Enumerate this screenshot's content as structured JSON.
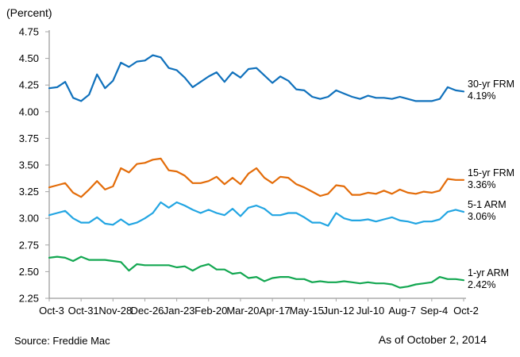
{
  "header": {
    "title": "(Percent)"
  },
  "footer": {
    "source": "Source: Freddie Mac",
    "as_of": "As of October 2, 2014"
  },
  "chart_data": {
    "type": "line",
    "title": "(Percent)",
    "ylabel": "Percent",
    "ylim": [
      2.25,
      4.75
    ],
    "y_ticks": [
      "4.75",
      "4.50",
      "4.25",
      "4.00",
      "3.75",
      "3.50",
      "3.25",
      "3.00",
      "2.75",
      "2.50",
      "2.25"
    ],
    "x_tick_labels": [
      "Oct-3",
      "Oct-31",
      "Nov-28",
      "Dec-26",
      "Jan-23",
      "Feb-20",
      "Mar-20",
      "Apr-17",
      "May-15",
      "Jun-12",
      "Jul-10",
      "Aug-7",
      "Sep-4",
      "Oct-2"
    ],
    "x_tick_indices": [
      0,
      4,
      8,
      12,
      16,
      20,
      24,
      28,
      32,
      36,
      40,
      44,
      48,
      52
    ],
    "num_points": 53,
    "grid": false,
    "legend_position": "right-end-labels",
    "axis_color": "#808080",
    "tick_color": "#A6A6A6",
    "text_color": "#000000",
    "series": [
      {
        "name": "30-yr FRM",
        "end_label": "4.19%",
        "color": "#1071BC",
        "values": [
          4.22,
          4.23,
          4.28,
          4.13,
          4.1,
          4.16,
          4.35,
          4.22,
          4.29,
          4.46,
          4.42,
          4.47,
          4.48,
          4.53,
          4.51,
          4.41,
          4.39,
          4.32,
          4.23,
          4.28,
          4.33,
          4.37,
          4.28,
          4.37,
          4.32,
          4.4,
          4.41,
          4.34,
          4.27,
          4.33,
          4.29,
          4.21,
          4.2,
          4.14,
          4.12,
          4.14,
          4.2,
          4.17,
          4.14,
          4.12,
          4.15,
          4.13,
          4.13,
          4.12,
          4.14,
          4.12,
          4.1,
          4.1,
          4.1,
          4.12,
          4.23,
          4.2,
          4.19
        ]
      },
      {
        "name": "15-yr FRM",
        "end_label": "3.36%",
        "color": "#E36C09",
        "values": [
          3.29,
          3.31,
          3.33,
          3.24,
          3.2,
          3.27,
          3.35,
          3.27,
          3.3,
          3.47,
          3.43,
          3.51,
          3.52,
          3.55,
          3.56,
          3.45,
          3.44,
          3.4,
          3.33,
          3.33,
          3.35,
          3.39,
          3.32,
          3.38,
          3.32,
          3.42,
          3.47,
          3.38,
          3.33,
          3.39,
          3.38,
          3.32,
          3.29,
          3.25,
          3.21,
          3.23,
          3.31,
          3.3,
          3.22,
          3.22,
          3.24,
          3.23,
          3.26,
          3.23,
          3.27,
          3.24,
          3.23,
          3.25,
          3.24,
          3.26,
          3.37,
          3.36,
          3.36
        ]
      },
      {
        "name": "5-1 ARM",
        "end_label": "3.06%",
        "color": "#22A5E2",
        "values": [
          3.03,
          3.05,
          3.07,
          3.0,
          2.96,
          2.96,
          3.01,
          2.95,
          2.94,
          2.99,
          2.94,
          2.96,
          3.0,
          3.05,
          3.15,
          3.1,
          3.15,
          3.12,
          3.08,
          3.05,
          3.08,
          3.05,
          3.03,
          3.09,
          3.02,
          3.1,
          3.12,
          3.09,
          3.03,
          3.03,
          3.05,
          3.05,
          3.01,
          2.96,
          2.96,
          2.93,
          3.05,
          3.0,
          2.98,
          2.98,
          2.99,
          2.97,
          2.99,
          3.01,
          2.98,
          2.97,
          2.95,
          2.97,
          2.97,
          2.99,
          3.06,
          3.08,
          3.06
        ]
      },
      {
        "name": "1-yr ARM",
        "end_label": "2.42%",
        "color": "#13A751",
        "values": [
          2.63,
          2.64,
          2.63,
          2.6,
          2.64,
          2.61,
          2.61,
          2.61,
          2.6,
          2.59,
          2.51,
          2.57,
          2.56,
          2.56,
          2.56,
          2.56,
          2.54,
          2.55,
          2.51,
          2.55,
          2.57,
          2.52,
          2.52,
          2.48,
          2.49,
          2.44,
          2.45,
          2.41,
          2.44,
          2.45,
          2.45,
          2.43,
          2.43,
          2.4,
          2.41,
          2.4,
          2.4,
          2.41,
          2.4,
          2.39,
          2.4,
          2.39,
          2.39,
          2.38,
          2.35,
          2.36,
          2.38,
          2.39,
          2.4,
          2.45,
          2.43,
          2.43,
          2.42
        ]
      }
    ]
  }
}
